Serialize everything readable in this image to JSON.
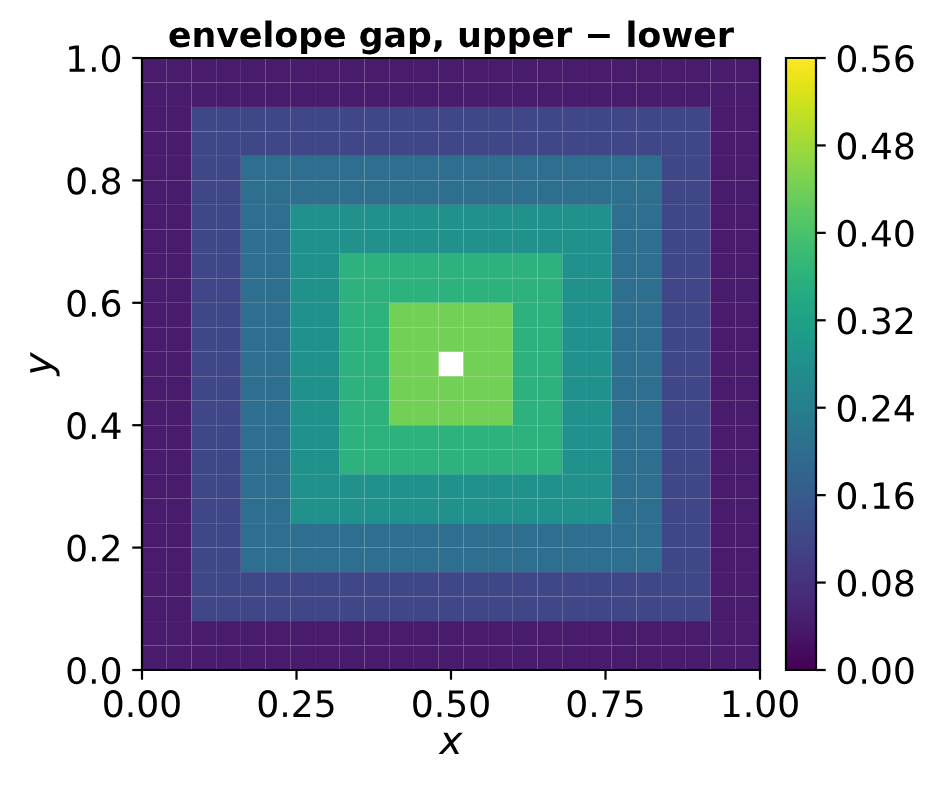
{
  "chart_data": {
    "type": "heatmap",
    "title": "envelope gap, upper − lower",
    "xlabel": "x",
    "ylabel": "y",
    "xlim": [
      0,
      1
    ],
    "ylim": [
      0,
      1
    ],
    "xticks": [
      {
        "value": 0,
        "label": "0.00"
      },
      {
        "value": 0.25,
        "label": "0.25"
      },
      {
        "value": 0.5,
        "label": "0.50"
      },
      {
        "value": 0.75,
        "label": "0.75"
      },
      {
        "value": 1,
        "label": "1.00"
      }
    ],
    "yticks": [
      {
        "value": 0,
        "label": "0.0"
      },
      {
        "value": 0.2,
        "label": "0.2"
      },
      {
        "value": 0.4,
        "label": "0.4"
      },
      {
        "value": 0.6,
        "label": "0.6"
      },
      {
        "value": 0.8,
        "label": "0.8"
      },
      {
        "value": 1,
        "label": "1.0"
      }
    ],
    "clim": [
      0,
      0.56
    ],
    "cticks": [
      {
        "value": 0,
        "label": "0.00"
      },
      {
        "value": 0.08,
        "label": "0.08"
      },
      {
        "value": 0.16,
        "label": "0.16"
      },
      {
        "value": 0.24,
        "label": "0.24"
      },
      {
        "value": 0.32,
        "label": "0.32"
      },
      {
        "value": 0.4,
        "label": "0.40"
      },
      {
        "value": 0.48,
        "label": "0.48"
      },
      {
        "value": 0.56,
        "label": "0.56"
      }
    ],
    "cells": [
      [
        0.04,
        0.04,
        0.04,
        0.04,
        0.04,
        0.04,
        0.04,
        0.04,
        0.04,
        0.04,
        0.04,
        0.04,
        0.04,
        0.04,
        0.04,
        0.04,
        0.04,
        0.04,
        0.04,
        0.04,
        0.04,
        0.04,
        0.04,
        0.04,
        0.04
      ],
      [
        0.04,
        0.04,
        0.04,
        0.04,
        0.04,
        0.04,
        0.04,
        0.04,
        0.04,
        0.04,
        0.04,
        0.04,
        0.04,
        0.04,
        0.04,
        0.04,
        0.04,
        0.04,
        0.04,
        0.04,
        0.04,
        0.04,
        0.04,
        0.04,
        0.04
      ],
      [
        0.04,
        0.04,
        0.12,
        0.12,
        0.12,
        0.12,
        0.12,
        0.12,
        0.12,
        0.12,
        0.12,
        0.12,
        0.12,
        0.12,
        0.12,
        0.12,
        0.12,
        0.12,
        0.12,
        0.12,
        0.12,
        0.12,
        0.12,
        0.04,
        0.04
      ],
      [
        0.04,
        0.04,
        0.12,
        0.12,
        0.12,
        0.12,
        0.12,
        0.12,
        0.12,
        0.12,
        0.12,
        0.12,
        0.12,
        0.12,
        0.12,
        0.12,
        0.12,
        0.12,
        0.12,
        0.12,
        0.12,
        0.12,
        0.12,
        0.04,
        0.04
      ],
      [
        0.04,
        0.04,
        0.12,
        0.12,
        0.2,
        0.2,
        0.2,
        0.2,
        0.2,
        0.2,
        0.2,
        0.2,
        0.2,
        0.2,
        0.2,
        0.2,
        0.2,
        0.2,
        0.2,
        0.2,
        0.2,
        0.12,
        0.12,
        0.04,
        0.04
      ],
      [
        0.04,
        0.04,
        0.12,
        0.12,
        0.2,
        0.2,
        0.2,
        0.2,
        0.2,
        0.2,
        0.2,
        0.2,
        0.2,
        0.2,
        0.2,
        0.2,
        0.2,
        0.2,
        0.2,
        0.2,
        0.2,
        0.12,
        0.12,
        0.04,
        0.04
      ],
      [
        0.04,
        0.04,
        0.12,
        0.12,
        0.2,
        0.2,
        0.28,
        0.28,
        0.28,
        0.28,
        0.28,
        0.28,
        0.28,
        0.28,
        0.28,
        0.28,
        0.28,
        0.28,
        0.28,
        0.2,
        0.2,
        0.12,
        0.12,
        0.04,
        0.04
      ],
      [
        0.04,
        0.04,
        0.12,
        0.12,
        0.2,
        0.2,
        0.28,
        0.28,
        0.28,
        0.28,
        0.28,
        0.28,
        0.28,
        0.28,
        0.28,
        0.28,
        0.28,
        0.28,
        0.28,
        0.2,
        0.2,
        0.12,
        0.12,
        0.04,
        0.04
      ],
      [
        0.04,
        0.04,
        0.12,
        0.12,
        0.2,
        0.2,
        0.28,
        0.28,
        0.36,
        0.36,
        0.36,
        0.36,
        0.36,
        0.36,
        0.36,
        0.36,
        0.36,
        0.28,
        0.28,
        0.2,
        0.2,
        0.12,
        0.12,
        0.04,
        0.04
      ],
      [
        0.04,
        0.04,
        0.12,
        0.12,
        0.2,
        0.2,
        0.28,
        0.28,
        0.36,
        0.36,
        0.36,
        0.36,
        0.36,
        0.36,
        0.36,
        0.36,
        0.36,
        0.28,
        0.28,
        0.2,
        0.2,
        0.12,
        0.12,
        0.04,
        0.04
      ],
      [
        0.04,
        0.04,
        0.12,
        0.12,
        0.2,
        0.2,
        0.28,
        0.28,
        0.36,
        0.36,
        0.44,
        0.44,
        0.44,
        0.44,
        0.44,
        0.36,
        0.36,
        0.28,
        0.28,
        0.2,
        0.2,
        0.12,
        0.12,
        0.04,
        0.04
      ],
      [
        0.04,
        0.04,
        0.12,
        0.12,
        0.2,
        0.2,
        0.28,
        0.28,
        0.36,
        0.36,
        0.44,
        0.44,
        0.44,
        0.44,
        0.44,
        0.36,
        0.36,
        0.28,
        0.28,
        0.2,
        0.2,
        0.12,
        0.12,
        0.04,
        0.04
      ],
      [
        0.04,
        0.04,
        0.12,
        0.12,
        0.2,
        0.2,
        0.28,
        0.28,
        0.36,
        0.36,
        0.44,
        0.44,
        null,
        0.44,
        0.44,
        0.36,
        0.36,
        0.28,
        0.28,
        0.2,
        0.2,
        0.12,
        0.12,
        0.04,
        0.04
      ],
      [
        0.04,
        0.04,
        0.12,
        0.12,
        0.2,
        0.2,
        0.28,
        0.28,
        0.36,
        0.36,
        0.44,
        0.44,
        0.44,
        0.44,
        0.44,
        0.36,
        0.36,
        0.28,
        0.28,
        0.2,
        0.2,
        0.12,
        0.12,
        0.04,
        0.04
      ],
      [
        0.04,
        0.04,
        0.12,
        0.12,
        0.2,
        0.2,
        0.28,
        0.28,
        0.36,
        0.36,
        0.44,
        0.44,
        0.44,
        0.44,
        0.44,
        0.36,
        0.36,
        0.28,
        0.28,
        0.2,
        0.2,
        0.12,
        0.12,
        0.04,
        0.04
      ],
      [
        0.04,
        0.04,
        0.12,
        0.12,
        0.2,
        0.2,
        0.28,
        0.28,
        0.36,
        0.36,
        0.36,
        0.36,
        0.36,
        0.36,
        0.36,
        0.36,
        0.36,
        0.28,
        0.28,
        0.2,
        0.2,
        0.12,
        0.12,
        0.04,
        0.04
      ],
      [
        0.04,
        0.04,
        0.12,
        0.12,
        0.2,
        0.2,
        0.28,
        0.28,
        0.36,
        0.36,
        0.36,
        0.36,
        0.36,
        0.36,
        0.36,
        0.36,
        0.36,
        0.28,
        0.28,
        0.2,
        0.2,
        0.12,
        0.12,
        0.04,
        0.04
      ],
      [
        0.04,
        0.04,
        0.12,
        0.12,
        0.2,
        0.2,
        0.28,
        0.28,
        0.28,
        0.28,
        0.28,
        0.28,
        0.28,
        0.28,
        0.28,
        0.28,
        0.28,
        0.28,
        0.28,
        0.2,
        0.2,
        0.12,
        0.12,
        0.04,
        0.04
      ],
      [
        0.04,
        0.04,
        0.12,
        0.12,
        0.2,
        0.2,
        0.28,
        0.28,
        0.28,
        0.28,
        0.28,
        0.28,
        0.28,
        0.28,
        0.28,
        0.28,
        0.28,
        0.28,
        0.28,
        0.2,
        0.2,
        0.12,
        0.12,
        0.04,
        0.04
      ],
      [
        0.04,
        0.04,
        0.12,
        0.12,
        0.2,
        0.2,
        0.2,
        0.2,
        0.2,
        0.2,
        0.2,
        0.2,
        0.2,
        0.2,
        0.2,
        0.2,
        0.2,
        0.2,
        0.2,
        0.2,
        0.2,
        0.12,
        0.12,
        0.04,
        0.04
      ],
      [
        0.04,
        0.04,
        0.12,
        0.12,
        0.2,
        0.2,
        0.2,
        0.2,
        0.2,
        0.2,
        0.2,
        0.2,
        0.2,
        0.2,
        0.2,
        0.2,
        0.2,
        0.2,
        0.2,
        0.2,
        0.2,
        0.12,
        0.12,
        0.04,
        0.04
      ],
      [
        0.04,
        0.04,
        0.12,
        0.12,
        0.12,
        0.12,
        0.12,
        0.12,
        0.12,
        0.12,
        0.12,
        0.12,
        0.12,
        0.12,
        0.12,
        0.12,
        0.12,
        0.12,
        0.12,
        0.12,
        0.12,
        0.12,
        0.12,
        0.04,
        0.04
      ],
      [
        0.04,
        0.04,
        0.12,
        0.12,
        0.12,
        0.12,
        0.12,
        0.12,
        0.12,
        0.12,
        0.12,
        0.12,
        0.12,
        0.12,
        0.12,
        0.12,
        0.12,
        0.12,
        0.12,
        0.12,
        0.12,
        0.12,
        0.12,
        0.04,
        0.04
      ],
      [
        0.04,
        0.04,
        0.04,
        0.04,
        0.04,
        0.04,
        0.04,
        0.04,
        0.04,
        0.04,
        0.04,
        0.04,
        0.04,
        0.04,
        0.04,
        0.04,
        0.04,
        0.04,
        0.04,
        0.04,
        0.04,
        0.04,
        0.04,
        0.04,
        0.04
      ],
      [
        0.04,
        0.04,
        0.04,
        0.04,
        0.04,
        0.04,
        0.04,
        0.04,
        0.04,
        0.04,
        0.04,
        0.04,
        0.04,
        0.04,
        0.04,
        0.04,
        0.04,
        0.04,
        0.04,
        0.04,
        0.04,
        0.04,
        0.04,
        0.04,
        0.04
      ]
    ]
  }
}
